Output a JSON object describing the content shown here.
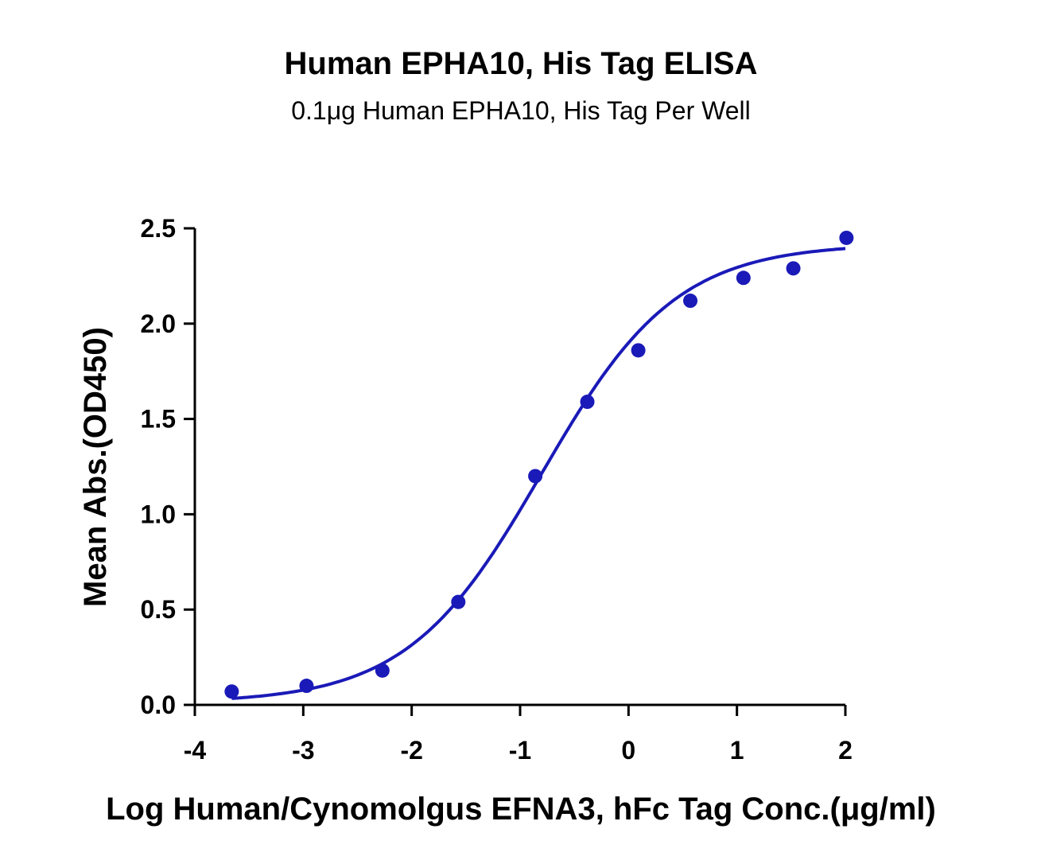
{
  "chart_data": {
    "type": "scatter",
    "title": "Human EPHA10, His Tag ELISA",
    "subtitle": "0.1μg Human EPHA10, His Tag Per Well",
    "xlabel": "Log Human/Cynomolgus EFNA3, hFc Tag Conc.(μg/ml)",
    "ylabel": "Mean Abs.(OD450)",
    "xlim": [
      -4,
      2
    ],
    "ylim": [
      0,
      2.5
    ],
    "xticks": [
      "-4",
      "-3",
      "-2",
      "-1",
      "0",
      "1",
      "2"
    ],
    "yticks": [
      "0.0",
      "0.5",
      "1.0",
      "1.5",
      "2.0",
      "2.5"
    ],
    "grid": false,
    "color": "#1a1ab8",
    "points": [
      {
        "x": -3.66,
        "y": 0.07
      },
      {
        "x": -2.97,
        "y": 0.1
      },
      {
        "x": -2.27,
        "y": 0.18
      },
      {
        "x": -1.57,
        "y": 0.54
      },
      {
        "x": -0.86,
        "y": 1.2
      },
      {
        "x": -0.38,
        "y": 1.59
      },
      {
        "x": 0.09,
        "y": 1.86
      },
      {
        "x": 0.57,
        "y": 2.12
      },
      {
        "x": 1.06,
        "y": 2.24
      },
      {
        "x": 1.52,
        "y": 2.29
      },
      {
        "x": 2.01,
        "y": 2.45
      }
    ],
    "fit": {
      "model": "4PL",
      "bottom": 0.01,
      "top": 2.42,
      "logEC50": -0.8,
      "hill": 0.7,
      "x_range": [
        -3.66,
        2.0
      ]
    }
  }
}
